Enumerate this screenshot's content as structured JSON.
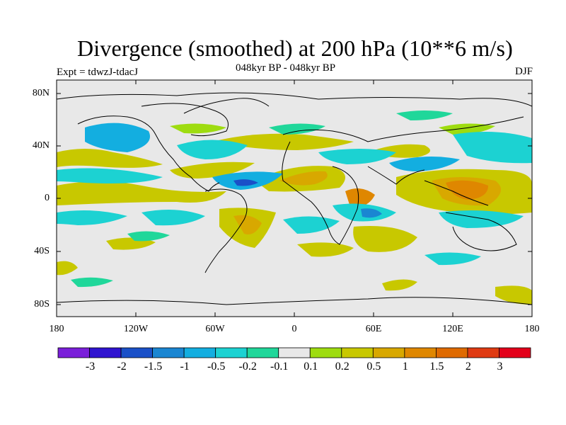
{
  "title": "Divergence (smoothed) at 200 hPa (10**6 m/s)",
  "subtitle": "048kyr BP - 048kyr BP",
  "experiment": "Expt = tdwzJ-tdacJ",
  "season": "DJF",
  "lat_labels": [
    "80N",
    "40N",
    "0",
    "40S",
    "80S"
  ],
  "lon_labels": [
    "180",
    "120W",
    "60W",
    "0",
    "60E",
    "120E",
    "180"
  ],
  "colorbar": {
    "colors": [
      "#7a1fd9",
      "#3014d0",
      "#1a50c8",
      "#1a86d2",
      "#13aee0",
      "#1cd2d2",
      "#20d79a",
      "#e8e8e8",
      "#9edc10",
      "#c8c800",
      "#d8a800",
      "#df8700",
      "#df6a00",
      "#df3a12",
      "#e3001a"
    ],
    "labels": [
      "-3",
      "-2",
      "-1.5",
      "-1",
      "-0.5",
      "-0.2",
      "-0.1",
      "0.1",
      "0.2",
      "0.5",
      "1",
      "1.5",
      "2",
      "3"
    ]
  }
}
